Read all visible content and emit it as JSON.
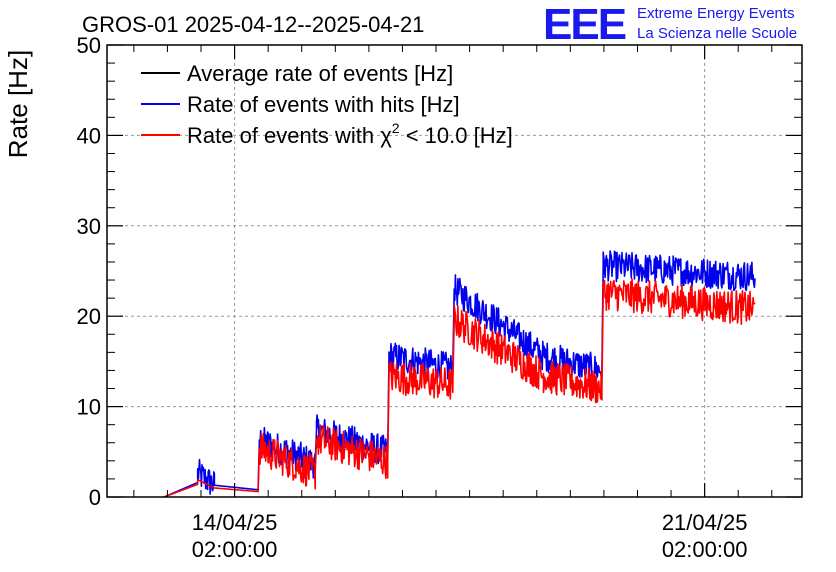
{
  "title": "GROS-01 2025-04-12--2025-04-21",
  "logo": {
    "mark": "EEE",
    "line1": "Extreme Energy Events",
    "line2": "La Scienza nelle Scuole"
  },
  "chart_data": {
    "type": "line",
    "ylabel": "Rate [Hz]",
    "xlabel": "",
    "ylim": [
      0,
      50
    ],
    "yticks": [
      0,
      10,
      20,
      30,
      40,
      50
    ],
    "xlim_days": [
      -1.9,
      8.45
    ],
    "xticks": [
      {
        "date": "14/04/25",
        "time": "02:00:00",
        "day": 0
      },
      {
        "date": "21/04/25",
        "time": "02:00:00",
        "day": 7
      }
    ],
    "grid": true,
    "legend_placement": "top-left",
    "series": [
      {
        "name": "Average rate of events [Hz]",
        "color": "#000000",
        "points": [
          [
            -1.05,
            0
          ],
          [
            -0.55,
            1.4
          ],
          [
            -0.55,
            1.6
          ],
          [
            -0.3,
            1.1
          ],
          [
            0.35,
            0.6
          ],
          [
            0.37,
            5.2
          ],
          [
            1.2,
            3.3
          ],
          [
            1.22,
            7.0
          ],
          [
            2.28,
            4.8
          ],
          [
            2.3,
            14.6
          ],
          [
            3.25,
            13.4
          ],
          [
            3.27,
            22.0
          ],
          [
            4.6,
            13.8
          ],
          [
            5.47,
            13.0
          ],
          [
            5.49,
            24.4
          ],
          [
            7.75,
            23.6
          ]
        ]
      },
      {
        "name": "Rate of events with hits [Hz]",
        "color": "#0000ee",
        "points": [
          [
            -1.05,
            0
          ],
          [
            -0.55,
            1.6
          ],
          [
            -0.55,
            2.6
          ],
          [
            -0.3,
            1.3
          ],
          [
            0.35,
            0.8
          ],
          [
            0.37,
            6.3
          ],
          [
            1.2,
            3.7
          ],
          [
            1.22,
            7.4
          ],
          [
            2.28,
            5.0
          ],
          [
            2.3,
            15.6
          ],
          [
            3.25,
            14.2
          ],
          [
            3.27,
            23.0
          ],
          [
            4.6,
            15.6
          ],
          [
            5.47,
            14.0
          ],
          [
            5.49,
            25.6
          ],
          [
            7.75,
            24.4
          ]
        ]
      },
      {
        "name": "Rate of events with χ² < 10.0 [Hz]",
        "name_display": {
          "prefix": "Rate of events with ",
          "chi": "χ",
          "sup": "2",
          "suffix": " < 10.0 [Hz]"
        },
        "color": "#ff0000",
        "points": [
          [
            -1.05,
            0
          ],
          [
            -0.55,
            1.4
          ],
          [
            -0.55,
            1.9
          ],
          [
            -0.3,
            1.0
          ],
          [
            0.35,
            0.6
          ],
          [
            0.37,
            5.4
          ],
          [
            1.2,
            2.6
          ],
          [
            1.22,
            6.4
          ],
          [
            2.28,
            3.9
          ],
          [
            2.3,
            13.4
          ],
          [
            3.25,
            12.4
          ],
          [
            3.27,
            19.6
          ],
          [
            4.6,
            13.4
          ],
          [
            5.47,
            12.0
          ],
          [
            5.49,
            22.6
          ],
          [
            7.75,
            20.8
          ]
        ]
      }
    ]
  }
}
